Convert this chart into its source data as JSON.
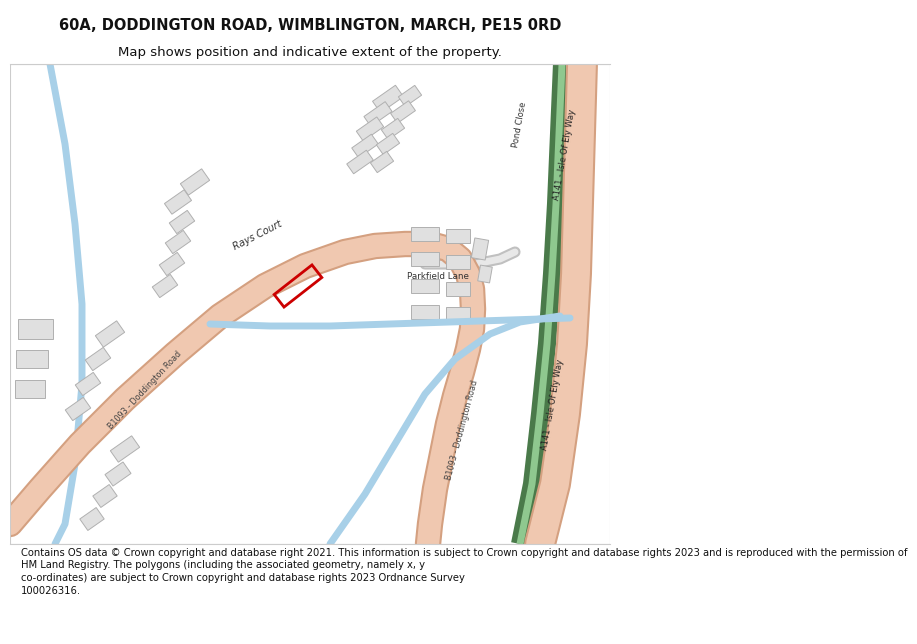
{
  "title": "60A, DODDINGTON ROAD, WIMBLINGTON, MARCH, PE15 0RD",
  "subtitle": "Map shows position and indicative extent of the property.",
  "footer": "Contains OS data © Crown copyright and database right 2021. This information is subject to Crown copyright and database rights 2023 and is reproduced with the permission of\nHM Land Registry. The polygons (including the associated geometry, namely x, y\nco-ordinates) are subject to Crown copyright and database rights 2023 Ordnance Survey\n100026316.",
  "bg_color": "#ffffff",
  "map_bg": "#ffffff",
  "road_color": "#f0c8b0",
  "road_edge": "#d4a080",
  "bld_fill": "#e0e0e0",
  "bld_edge": "#b0b0b0",
  "water_color": "#a8d0e8",
  "green_dark": "#4a7a4a",
  "green_light": "#8fc88f",
  "plot_color": "#cc0000",
  "title_fontsize": 10.5,
  "subtitle_fontsize": 9.5,
  "footer_fontsize": 7.2
}
